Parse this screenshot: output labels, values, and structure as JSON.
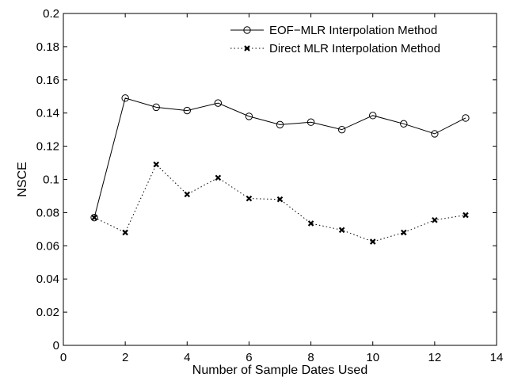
{
  "chart_data": {
    "type": "line",
    "xlabel": "Number of Sample Dates Used",
    "ylabel": "NSCE",
    "xlim": [
      0,
      14
    ],
    "ylim": [
      0,
      0.2
    ],
    "x_ticks": [
      0,
      2,
      4,
      6,
      8,
      10,
      12,
      14
    ],
    "y_ticks": [
      0,
      0.02,
      0.04,
      0.06,
      0.08,
      0.1,
      0.12,
      0.14,
      0.16,
      0.18,
      0.2
    ],
    "x_tick_labels": [
      "0",
      "2",
      "4",
      "6",
      "8",
      "10",
      "12",
      "14"
    ],
    "y_tick_labels": [
      "0",
      "0.02",
      "0.04",
      "0.06",
      "0.08",
      "0.1",
      "0.12",
      "0.14",
      "0.16",
      "0.18",
      "0.2"
    ],
    "grid": false,
    "legend_position": "top-right",
    "series": [
      {
        "name": "EOF−MLR Interpolation Method",
        "style": "solid",
        "marker": "circle",
        "color": "#000000",
        "x": [
          1,
          2,
          3,
          4,
          5,
          6,
          7,
          8,
          9,
          10,
          11,
          12,
          13
        ],
        "y": [
          0.077,
          0.149,
          0.1435,
          0.1415,
          0.146,
          0.138,
          0.133,
          0.1345,
          0.13,
          0.1385,
          0.1335,
          0.1275,
          0.137
        ]
      },
      {
        "name": "Direct MLR Interpolation Method",
        "style": "dotted",
        "marker": "x",
        "color": "#000000",
        "x": [
          1,
          2,
          3,
          4,
          5,
          6,
          7,
          8,
          9,
          10,
          11,
          12,
          13
        ],
        "y": [
          0.077,
          0.068,
          0.109,
          0.091,
          0.101,
          0.0885,
          0.088,
          0.0735,
          0.0695,
          0.0625,
          0.068,
          0.0755,
          0.0785
        ]
      }
    ]
  }
}
